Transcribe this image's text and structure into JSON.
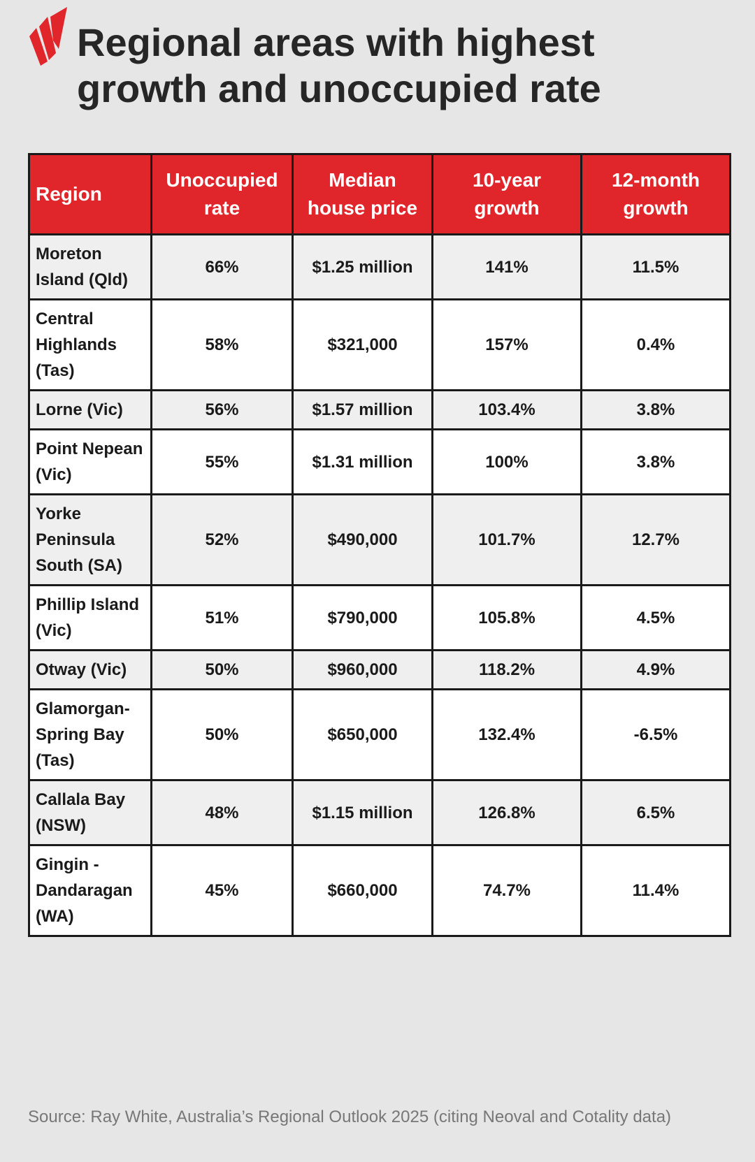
{
  "header": {
    "title": "Regional areas with highest growth and unoccupied rate"
  },
  "table": {
    "columns": [
      "Region",
      "Unoccupied rate",
      "Median house price",
      "10-year growth",
      "12-month growth"
    ],
    "rows": [
      [
        "Moreton Island (Qld)",
        "66%",
        "$1.25 million",
        "141%",
        "11.5%"
      ],
      [
        "Central Highlands (Tas)",
        "58%",
        "$321,000",
        "157%",
        "0.4%"
      ],
      [
        "Lorne (Vic)",
        "56%",
        "$1.57 million",
        "103.4%",
        "3.8%"
      ],
      [
        "Point Nepean (Vic)",
        "55%",
        "$1.31 million",
        "100%",
        "3.8%"
      ],
      [
        "Yorke Peninsula South (SA)",
        "52%",
        "$490,000",
        "101.7%",
        "12.7%"
      ],
      [
        "Phillip Island (Vic)",
        "51%",
        "$790,000",
        "105.8%",
        "4.5%"
      ],
      [
        "Otway (Vic)",
        "50%",
        "$960,000",
        "118.2%",
        "4.9%"
      ],
      [
        "Glamorgan-Spring Bay (Tas)",
        "50%",
        "$650,000",
        "132.4%",
        "-6.5%"
      ],
      [
        "Callala Bay (NSW)",
        "48%",
        "$1.15 million",
        "126.8%",
        "6.5%"
      ],
      [
        "Gingin - Dandaragan (WA)",
        "45%",
        "$660,000",
        "74.7%",
        "11.4%"
      ]
    ]
  },
  "footer": {
    "source": "Source: Ray White, Australia’s Regional Outlook 2025 (citing Neoval and Cotality data)"
  }
}
